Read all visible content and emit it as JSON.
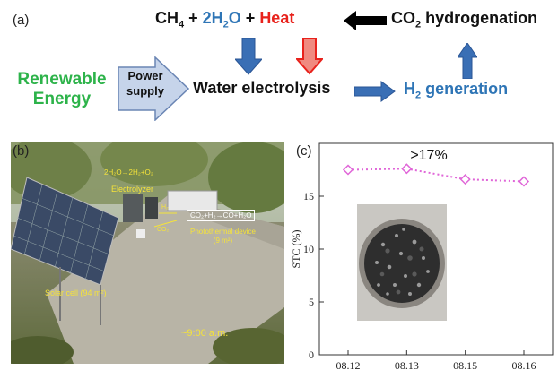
{
  "panel_a": {
    "label": "(a)",
    "eq_ch4": "CH",
    "eq_ch4_sub": "4",
    "eq_plus1": " + ",
    "eq_h2o": "2H",
    "eq_h2o_sub": "2",
    "eq_h2o_o": "O",
    "eq_plus2": " + ",
    "eq_heat": "Heat",
    "co2_hydrogenation_a": "CO",
    "co2_hydrogenation_sub": "2",
    "co2_hydrogenation_b": " hydrogenation",
    "renewable_line1": "Renewable",
    "renewable_line2": "Energy",
    "power_line1": "Power",
    "power_line2": "supply",
    "water_electrolysis": "Water electrolysis",
    "h2_a": "H",
    "h2_sub": "2",
    "h2_b": " generation",
    "colors": {
      "green": "#2db34a",
      "blue": "#2e75b6",
      "red": "#e8221c",
      "arrow_blue": "#3a6fb5",
      "arrow_red": "#e53a30"
    }
  },
  "panel_b": {
    "label": "(b)",
    "reaction_top": "2H₂O→2H₂+O₂",
    "electrolyzer": "Electrolyzer",
    "h2_small": "H₂",
    "co2_small": "CO₂",
    "box_reaction": "CO₂+H₂→CO+H₂O",
    "photothermal_line1": "Photothermal device",
    "photothermal_line2": "(9 m²)",
    "solar_cell": "Solar cell (94 m²)",
    "time": "~9:00 a.m."
  },
  "panel_c": {
    "label": "(c)",
    "annotation": ">17%"
  },
  "chart_data": {
    "type": "line",
    "categories": [
      "08.12",
      "08.13",
      "08.15",
      "08.16"
    ],
    "series": [
      {
        "values": [
          17.5,
          17.6,
          16.6,
          16.4
        ],
        "color": "#e066d8"
      }
    ],
    "ylabel": "STC (%)",
    "ylim": [
      0,
      20
    ],
    "yticks": [
      0,
      5,
      10,
      15
    ],
    "ytick_labels": [
      "0",
      "5",
      "10",
      "15"
    ],
    "marker": "diamond",
    "line_style": "dotted",
    "annotation": ">17%"
  }
}
